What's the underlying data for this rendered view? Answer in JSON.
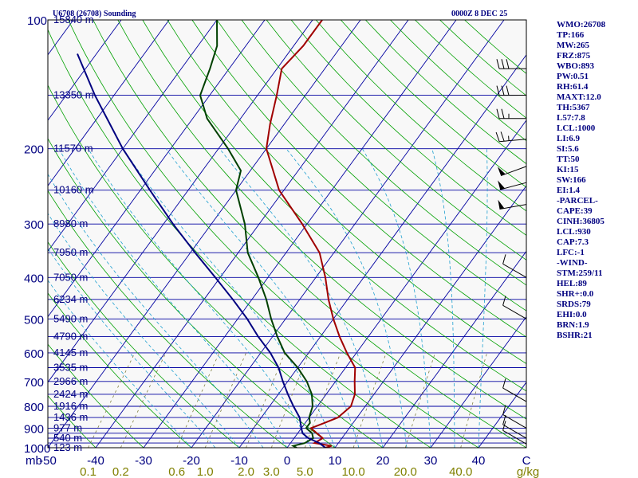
{
  "header": {
    "station": "U6708 (26708) Sounding",
    "time": "0000Z  8 DEC 25"
  },
  "stats": [
    "WMO:26708",
    "TP:166",
    "MW:265",
    "FRZ:875",
    "WBO:893",
    "PW:0.51",
    "RH:61.4",
    "MAXT:12.0",
    "TH:5367",
    "L57:7.8",
    "LCL:1000",
    "LI:6.9",
    "SI:5.6",
    "TT:50",
    "KI:15",
    "SW:166",
    "EI:1.4",
    "-PARCEL-",
    "CAPE:39",
    "CINH:36805",
    "LCL:930",
    "CAP:7.3",
    "LFC:-1",
    "-WIND-",
    "STM:259/11",
    "HEL:89",
    "SHR+:0.0",
    "SRDS:79",
    "EHI:0.0",
    "BRN:1.9",
    "BSHR:21"
  ],
  "chart_data": {
    "type": "line",
    "title": "U6708 (26708) Sounding",
    "subtitle": "0000Z  8 DEC 25",
    "xlabel": "",
    "ylabel": "",
    "x_axis": {
      "range": [
        -50,
        50
      ],
      "ticks": [
        -50,
        -40,
        -30,
        -20,
        -10,
        0,
        10,
        20,
        30,
        40,
        50
      ],
      "tick_labels": [
        "-50",
        "-40",
        "-30",
        "-20",
        "-10",
        "0",
        "10",
        "20",
        "30",
        "40",
        "C"
      ],
      "corner_label": "mb"
    },
    "y_axis": {
      "scale": "log",
      "range": [
        1000,
        100
      ],
      "pressure_labels": [
        "100",
        "200",
        "300",
        "400",
        "500",
        "600",
        "700",
        "800",
        "900",
        "1000"
      ],
      "pressure_values": [
        100,
        200,
        300,
        400,
        500,
        600,
        700,
        800,
        900,
        1000
      ]
    },
    "isobars": [
      100,
      150,
      200,
      250,
      300,
      350,
      400,
      450,
      500,
      550,
      600,
      650,
      700,
      750,
      800,
      850,
      900,
      925,
      950,
      975,
      1000
    ],
    "height_labels": [
      {
        "p": 100,
        "label": "15840 m"
      },
      {
        "p": 150,
        "label": "13350 m"
      },
      {
        "p": 200,
        "label": "11570 m"
      },
      {
        "p": 250,
        "label": "10160 m"
      },
      {
        "p": 300,
        "label": "8980 m"
      },
      {
        "p": 350,
        "label": "7950 m"
      },
      {
        "p": 400,
        "label": "7050 m"
      },
      {
        "p": 450,
        "label": "6234 m"
      },
      {
        "p": 500,
        "label": "5490 m"
      },
      {
        "p": 550,
        "label": "4790 m"
      },
      {
        "p": 600,
        "label": "4145 m"
      },
      {
        "p": 650,
        "label": "3535 m"
      },
      {
        "p": 700,
        "label": "2966 m"
      },
      {
        "p": 750,
        "label": "2424 m"
      },
      {
        "p": 800,
        "label": "1916 m"
      },
      {
        "p": 850,
        "label": "1436 m"
      },
      {
        "p": 900,
        "label": "977 m"
      },
      {
        "p": 950,
        "label": "540 m"
      },
      {
        "p": 1000,
        "label": "123 m"
      }
    ],
    "mixing_ratio_labels": [
      "0.1",
      "0.2",
      "0.6",
      "1.0",
      "2.0",
      "3.0",
      "5.0",
      "10.0",
      "20.0",
      "40.0"
    ],
    "mixing_ratio_values": [
      0.1,
      0.2,
      0.6,
      1.0,
      2.0,
      3.0,
      5.0,
      10.0,
      20.0,
      40.0
    ],
    "mixing_ratio_unit": "g/kg",
    "series": [
      {
        "role": "temperature",
        "color": "#a00000",
        "points": [
          [
            1000,
            8
          ],
          [
            990,
            9
          ],
          [
            975,
            5
          ],
          [
            950,
            6
          ],
          [
            925,
            4
          ],
          [
            900,
            2
          ],
          [
            875,
            4
          ],
          [
            850,
            6
          ],
          [
            800,
            7
          ],
          [
            750,
            6
          ],
          [
            700,
            4
          ],
          [
            650,
            2
          ],
          [
            600,
            -2
          ],
          [
            550,
            -6
          ],
          [
            500,
            -10
          ],
          [
            450,
            -14
          ],
          [
            400,
            -18
          ],
          [
            350,
            -23
          ],
          [
            300,
            -31
          ],
          [
            250,
            -41
          ],
          [
            200,
            -50
          ],
          [
            175,
            -53
          ],
          [
            150,
            -56
          ],
          [
            130,
            -59
          ],
          [
            115,
            -58
          ],
          [
            100,
            -58
          ]
        ]
      },
      {
        "role": "dewpoint",
        "color": "#004000",
        "points": [
          [
            1000,
            2
          ],
          [
            990,
            1
          ],
          [
            975,
            3
          ],
          [
            950,
            4
          ],
          [
            925,
            3
          ],
          [
            900,
            1
          ],
          [
            875,
            1
          ],
          [
            850,
            0
          ],
          [
            800,
            -1
          ],
          [
            750,
            -3
          ],
          [
            700,
            -6
          ],
          [
            650,
            -10
          ],
          [
            600,
            -15
          ],
          [
            550,
            -19
          ],
          [
            500,
            -23
          ],
          [
            450,
            -27
          ],
          [
            400,
            -32
          ],
          [
            350,
            -38
          ],
          [
            300,
            -43
          ],
          [
            250,
            -50
          ],
          [
            225,
            -52
          ],
          [
            200,
            -58
          ],
          [
            170,
            -67
          ],
          [
            150,
            -72
          ],
          [
            130,
            -74
          ],
          [
            115,
            -76
          ],
          [
            100,
            -80
          ]
        ]
      },
      {
        "role": "parcel",
        "color": "#000080",
        "points": [
          [
            1000,
            8
          ],
          [
            975,
            6
          ],
          [
            950,
            3
          ],
          [
            925,
            1
          ],
          [
            900,
            0
          ],
          [
            850,
            -2
          ],
          [
            800,
            -5
          ],
          [
            750,
            -8
          ],
          [
            700,
            -11
          ],
          [
            650,
            -14
          ],
          [
            600,
            -18
          ],
          [
            550,
            -23
          ],
          [
            500,
            -28
          ],
          [
            450,
            -34
          ],
          [
            400,
            -41
          ],
          [
            350,
            -49
          ],
          [
            300,
            -58
          ],
          [
            250,
            -68
          ],
          [
            200,
            -80
          ],
          [
            150,
            -94
          ],
          [
            120,
            -104
          ]
        ]
      }
    ],
    "wind_barbs": [
      {
        "p": 130,
        "dir": 270,
        "speed_kt": 30
      },
      {
        "p": 150,
        "dir": 270,
        "speed_kt": 30
      },
      {
        "p": 170,
        "dir": 270,
        "speed_kt": 25
      },
      {
        "p": 190,
        "dir": 265,
        "speed_kt": 25
      },
      {
        "p": 220,
        "dir": 250,
        "speed_kt": 50
      },
      {
        "p": 240,
        "dir": 255,
        "speed_kt": 50
      },
      {
        "p": 270,
        "dir": 260,
        "speed_kt": 50
      },
      {
        "p": 400,
        "dir": 300,
        "speed_kt": 10
      },
      {
        "p": 500,
        "dir": 300,
        "speed_kt": 10
      },
      {
        "p": 780,
        "dir": 300,
        "speed_kt": 10
      },
      {
        "p": 900,
        "dir": 300,
        "speed_kt": 10
      },
      {
        "p": 950,
        "dir": 300,
        "speed_kt": 10
      },
      {
        "p": 980,
        "dir": 300,
        "speed_kt": 10
      }
    ],
    "grid": true,
    "legend": "none"
  }
}
